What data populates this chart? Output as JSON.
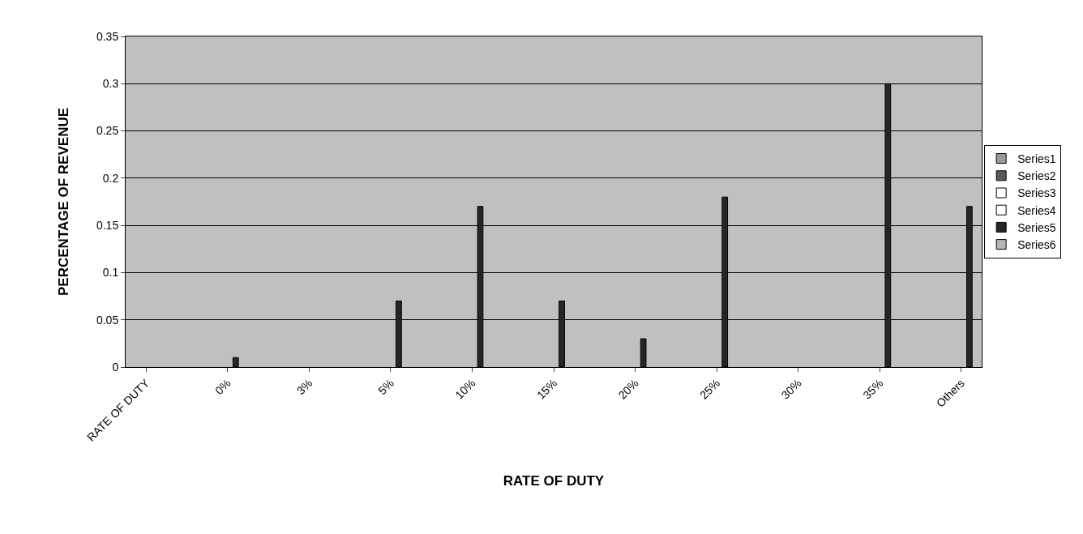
{
  "chart_data": {
    "type": "bar",
    "xlabel": "RATE OF DUTY",
    "ylabel": "PERCENTAGE OF REVENUE",
    "categories": [
      "RATE OF DUTY",
      null,
      "0%",
      null,
      "3%",
      null,
      "5%",
      null,
      "10%",
      null,
      "15%",
      null,
      "20%",
      null,
      "25%",
      null,
      "30%",
      null,
      "35%",
      null,
      "Others"
    ],
    "series": [
      {
        "name": "Series1",
        "color": "#9a9a9a",
        "values": [
          null,
          null,
          null,
          null,
          null,
          null,
          null,
          null,
          null,
          null,
          null,
          null,
          null,
          null,
          null,
          null,
          null,
          null,
          null,
          null,
          null
        ]
      },
      {
        "name": "Series2",
        "color": "#5a5a5a",
        "values": [
          null,
          null,
          null,
          null,
          null,
          null,
          null,
          null,
          null,
          null,
          null,
          null,
          null,
          null,
          null,
          null,
          null,
          null,
          null,
          null,
          null
        ]
      },
      {
        "name": "Series3",
        "color": "#ffffff",
        "values": [
          null,
          null,
          null,
          null,
          null,
          null,
          null,
          null,
          null,
          null,
          null,
          null,
          null,
          null,
          null,
          null,
          null,
          null,
          null,
          null,
          null
        ]
      },
      {
        "name": "Series4",
        "color": "#ffffff",
        "values": [
          null,
          null,
          null,
          null,
          null,
          null,
          null,
          null,
          null,
          null,
          null,
          null,
          null,
          null,
          null,
          null,
          null,
          null,
          null,
          null,
          null
        ]
      },
      {
        "name": "Series5",
        "color": "#262626",
        "values": [
          null,
          null,
          0.01,
          null,
          null,
          null,
          0.07,
          null,
          0.17,
          null,
          0.07,
          null,
          0.03,
          null,
          0.18,
          null,
          null,
          null,
          0.3,
          null,
          0.17
        ]
      },
      {
        "name": "Series6",
        "color": "#b4b4b4",
        "values": [
          null,
          null,
          null,
          null,
          null,
          null,
          null,
          null,
          null,
          null,
          null,
          null,
          null,
          null,
          null,
          null,
          null,
          null,
          null,
          null,
          null
        ]
      }
    ],
    "ylim": [
      0,
      0.35
    ],
    "yticks": [
      0,
      0.05,
      0.1,
      0.15,
      0.2,
      0.25,
      0.3,
      0.35
    ],
    "grid": "y",
    "legend": "right"
  }
}
